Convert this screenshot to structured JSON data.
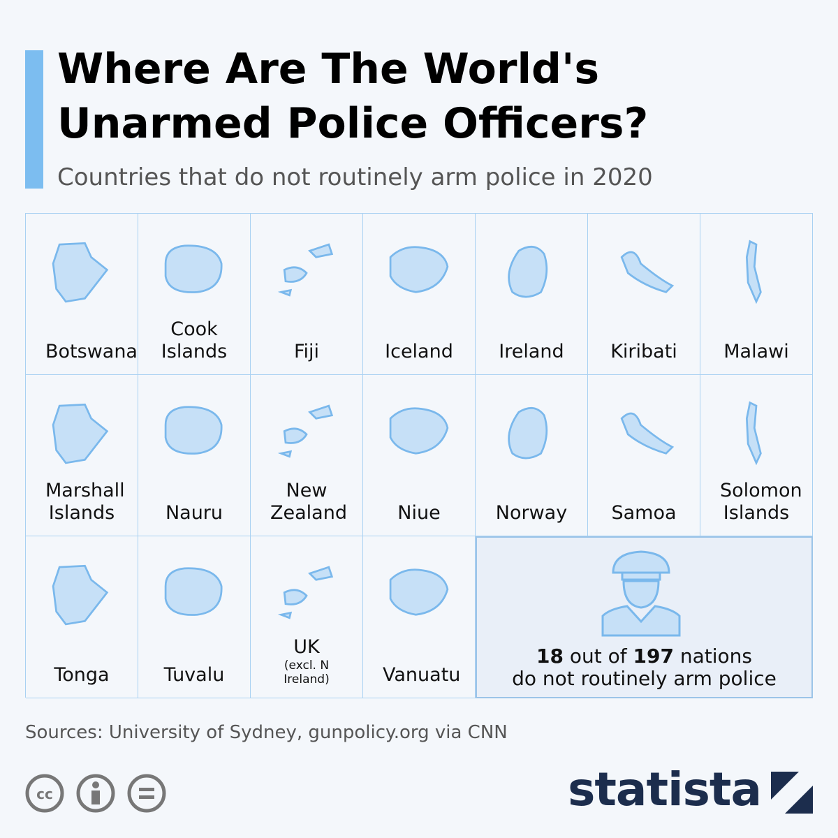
{
  "header": {
    "title": "Where Are The World's Unarmed Police Officers?",
    "subtitle": "Countries that do not routinely arm police in 2020"
  },
  "countries": [
    {
      "name": "Botswana"
    },
    {
      "name": "Cook Islands"
    },
    {
      "name": "Fiji"
    },
    {
      "name": "Iceland"
    },
    {
      "name": "Ireland"
    },
    {
      "name": "Kiribati"
    },
    {
      "name": "Malawi"
    },
    {
      "name": "Marshall Islands"
    },
    {
      "name": "Nauru"
    },
    {
      "name": "New Zealand"
    },
    {
      "name": "Niue"
    },
    {
      "name": "Norway"
    },
    {
      "name": "Samoa"
    },
    {
      "name": "Solomon Islands"
    },
    {
      "name": "Tonga"
    },
    {
      "name": "Tuvalu"
    },
    {
      "name": "UK",
      "note": "(excl. N Ireland)"
    },
    {
      "name": "Vanuatu"
    }
  ],
  "summary": {
    "count": 18,
    "text1": "out of",
    "total": 197,
    "text2": "nations",
    "text3": "do not routinely arm police"
  },
  "footer": {
    "source": "Sources: University of Sydney, gunpolicy.org via CNN",
    "brand": "statista"
  }
}
